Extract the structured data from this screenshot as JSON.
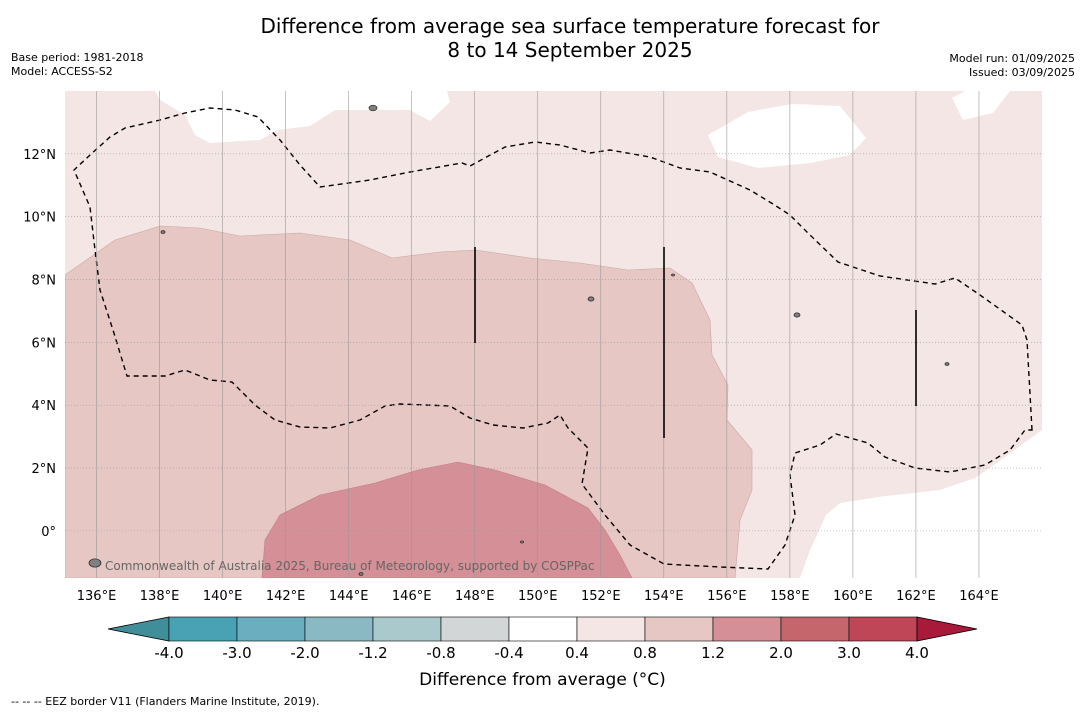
{
  "title": {
    "line1": "Difference from average sea surface temperature forecast for",
    "line2": "8 to 14 September 2025"
  },
  "meta_left": {
    "base_period": "Base period: 1981-2018",
    "model": "Model: ACCESS-S2"
  },
  "meta_right": {
    "model_run": "Model run: 01/09/2025",
    "issued": "Issued: 03/09/2025"
  },
  "map": {
    "lon_range": [
      135,
      166
    ],
    "lat_range": [
      -1.5,
      14
    ],
    "lon_ticks": [
      "136°E",
      "138°E",
      "140°E",
      "142°E",
      "144°E",
      "146°E",
      "148°E",
      "150°E",
      "152°E",
      "154°E",
      "156°E",
      "158°E",
      "160°E",
      "162°E",
      "164°E"
    ],
    "lat_ticks": [
      "12°N",
      "10°N",
      "8°N",
      "6°N",
      "4°N",
      "2°N",
      "0°"
    ],
    "watermark": "Commonwealth of Australia 2025, Bureau of Meteorology, supported by COSPPac",
    "colors": {
      "anom_0_4_0_8": "#f4e6e5",
      "anom_0_8_1_2": "#e6c7c4",
      "anom_1_2_2_0": "#d48f97",
      "land": "#808080",
      "grid": "#999999"
    }
  },
  "colorbar": {
    "labels": [
      "-4.0",
      "-3.0",
      "-2.0",
      "-1.2",
      "-0.8",
      "-0.4",
      "0.4",
      "0.8",
      "1.2",
      "2.0",
      "3.0",
      "4.0"
    ],
    "colors": [
      "#3f8e99",
      "#49a2b4",
      "#6aaebf",
      "#8ab9c3",
      "#a9c9cd",
      "#d3d6d7",
      "#ffffff",
      "#f4e6e5",
      "#e6c7c4",
      "#d48f97",
      "#c5666d",
      "#bf4656",
      "#a8193a"
    ],
    "title": "Difference from average (°C)"
  },
  "footnote": "-- -- -- EEZ border V11 (Flanders Marine Institute, 2019)."
}
